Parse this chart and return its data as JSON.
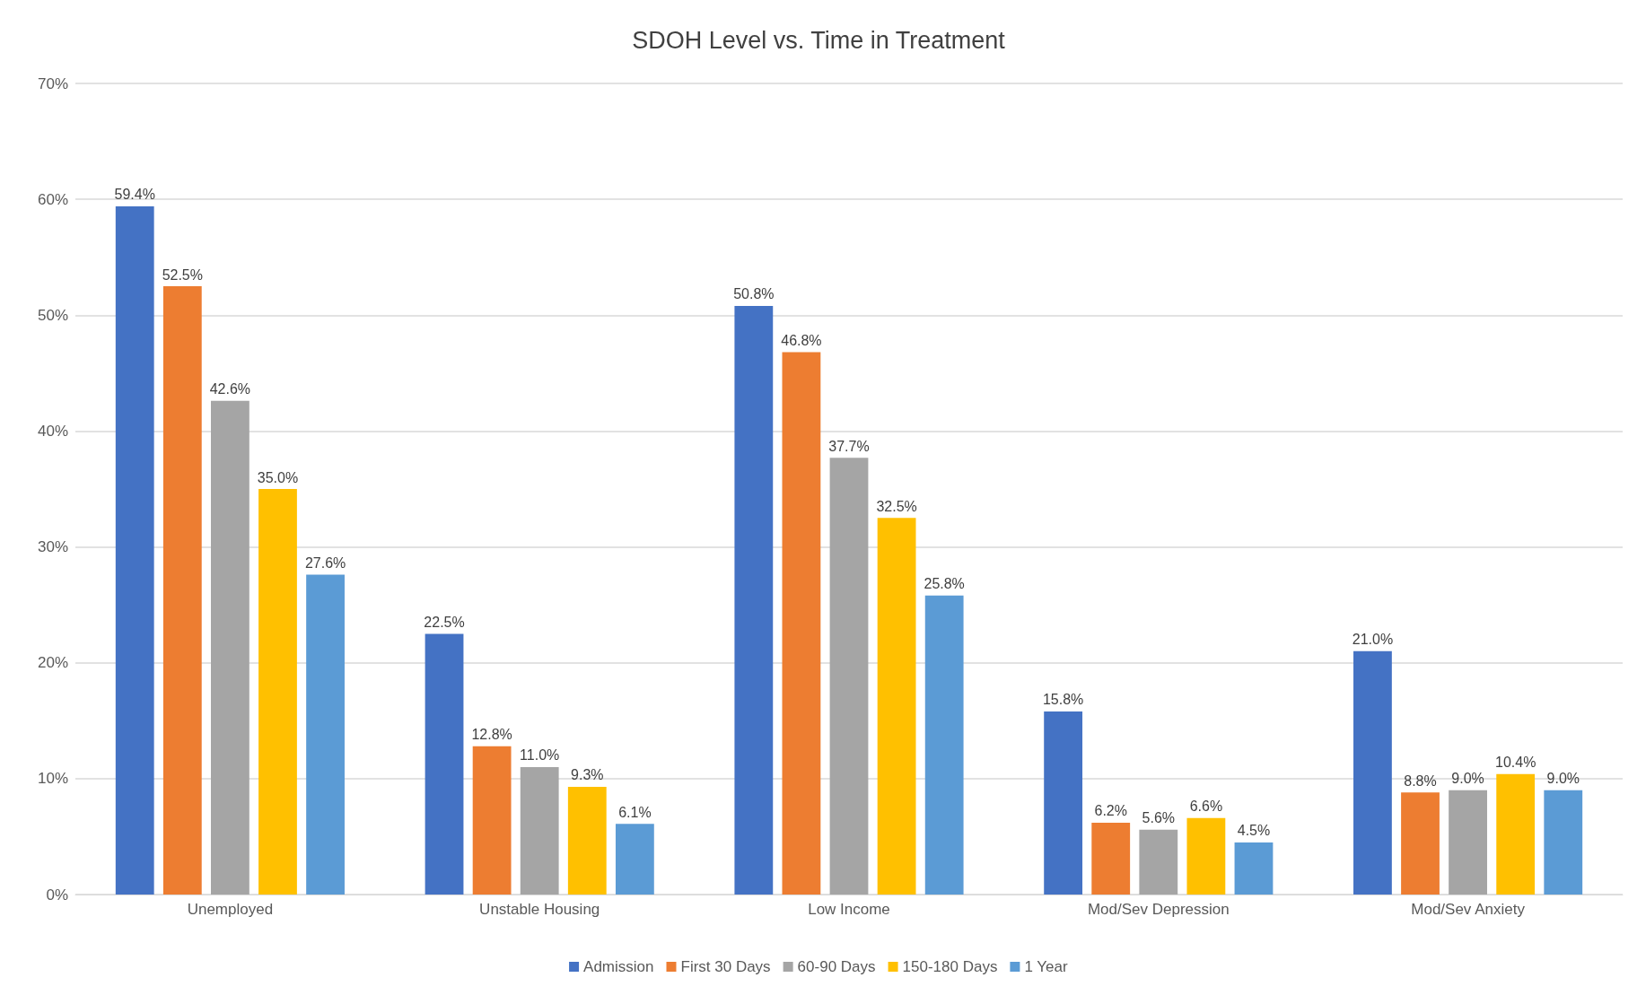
{
  "chart_data": {
    "type": "bar",
    "title": "SDOH Level vs. Time in Treatment",
    "categories": [
      "Unemployed",
      "Unstable Housing",
      "Low Income",
      "Mod/Sev Depression",
      "Mod/Sev Anxiety"
    ],
    "series": [
      {
        "name": "Admission",
        "color": "#4472c4",
        "values": [
          59.4,
          22.5,
          50.8,
          15.8,
          21.0
        ],
        "value_labels": [
          "59.4%",
          "22.5%",
          "50.8%",
          "15.8%",
          "21.0%"
        ]
      },
      {
        "name": "First 30 Days",
        "color": "#ed7d31",
        "values": [
          52.5,
          12.8,
          46.8,
          6.2,
          8.8
        ],
        "value_labels": [
          "52.5%",
          "12.8%",
          "46.8%",
          "6.2%",
          "8.8%"
        ]
      },
      {
        "name": "60-90 Days",
        "color": "#a5a5a5",
        "values": [
          42.6,
          11.0,
          37.7,
          5.6,
          9.0
        ],
        "value_labels": [
          "42.6%",
          "11.0%",
          "37.7%",
          "5.6%",
          "9.0%"
        ]
      },
      {
        "name": "150-180 Days",
        "color": "#ffc000",
        "values": [
          35.0,
          9.3,
          32.5,
          6.6,
          10.4
        ],
        "value_labels": [
          "35.0%",
          "9.3%",
          "32.5%",
          "6.6%",
          "10.4%"
        ]
      },
      {
        "name": "1 Year",
        "color": "#5b9bd5",
        "values": [
          27.6,
          6.1,
          25.8,
          4.5,
          9.0
        ],
        "value_labels": [
          "27.6%",
          "6.1%",
          "25.8%",
          "4.5%",
          "9.0%"
        ]
      }
    ],
    "ylim": [
      0,
      70
    ],
    "yticks": [
      {
        "value": 0,
        "label": "0%"
      },
      {
        "value": 10,
        "label": "10%"
      },
      {
        "value": 20,
        "label": "20%"
      },
      {
        "value": 30,
        "label": "30%"
      },
      {
        "value": 40,
        "label": "40%"
      },
      {
        "value": 50,
        "label": "50%"
      },
      {
        "value": 60,
        "label": "60%"
      },
      {
        "value": 70,
        "label": "70%"
      }
    ],
    "grid": "y",
    "legend": "bottom"
  }
}
